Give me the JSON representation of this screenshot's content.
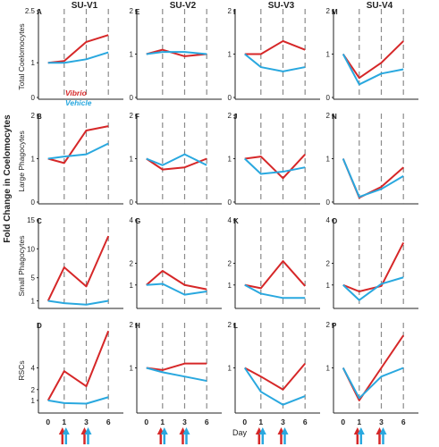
{
  "figure": {
    "y_axis_title": "Fold Change in Coelomocytes",
    "x_axis_title": "Day",
    "x_ticks": [
      "0",
      "1",
      "3",
      "6"
    ],
    "columns": [
      "SU-V1",
      "SU-V2",
      "SU-V3",
      "SU-V4"
    ],
    "rows": [
      "Total Coelomocytes",
      "Large Phagocytes",
      "Small Phagocytes",
      "RSCs"
    ],
    "legend": [
      {
        "name": "Vibrio",
        "color": "#d62728"
      },
      {
        "name": "Vehicle",
        "color": "#29a8df"
      }
    ]
  },
  "chart_data": [
    {
      "type": "line",
      "panel": "A",
      "column": "SU-V1",
      "row": "Total Coelomocytes",
      "x": [
        0,
        1,
        3,
        6
      ],
      "yticks": [
        0,
        1,
        2.5
      ],
      "ylim": [
        0,
        2.5
      ],
      "series": [
        {
          "name": "Vibrio",
          "values": [
            1.0,
            1.05,
            1.6,
            1.8
          ]
        },
        {
          "name": "Vehicle",
          "values": [
            1.0,
            1.0,
            1.1,
            1.3
          ]
        }
      ]
    },
    {
      "type": "line",
      "panel": "E",
      "column": "SU-V2",
      "row": "Total Coelomocytes",
      "x": [
        0,
        1,
        3,
        6
      ],
      "yticks": [
        0,
        1,
        2
      ],
      "ylim": [
        0,
        2
      ],
      "series": [
        {
          "name": "Vibrio",
          "values": [
            1.0,
            1.1,
            0.95,
            1.0
          ]
        },
        {
          "name": "Vehicle",
          "values": [
            1.0,
            1.05,
            1.05,
            1.0
          ]
        }
      ]
    },
    {
      "type": "line",
      "panel": "I",
      "column": "SU-V3",
      "row": "Total Coelomocytes",
      "x": [
        0,
        1,
        3,
        6
      ],
      "yticks": [
        0,
        1,
        2
      ],
      "ylim": [
        0,
        2
      ],
      "series": [
        {
          "name": "Vibrio",
          "values": [
            1.0,
            1.0,
            1.3,
            1.1
          ]
        },
        {
          "name": "Vehicle",
          "values": [
            1.0,
            0.7,
            0.6,
            0.7
          ]
        }
      ]
    },
    {
      "type": "line",
      "panel": "M",
      "column": "SU-V4",
      "row": "Total Coelomocytes",
      "x": [
        0,
        1,
        3,
        6
      ],
      "yticks": [
        0,
        1,
        2
      ],
      "ylim": [
        0,
        2
      ],
      "series": [
        {
          "name": "Vibrio",
          "values": [
            1.0,
            0.45,
            0.8,
            1.3
          ]
        },
        {
          "name": "Vehicle",
          "values": [
            1.0,
            0.3,
            0.55,
            0.65
          ]
        }
      ]
    },
    {
      "type": "line",
      "panel": "B",
      "column": "SU-V1",
      "row": "Large Phagocytes",
      "x": [
        0,
        1,
        3,
        6
      ],
      "yticks": [
        0,
        1,
        2
      ],
      "ylim": [
        0,
        2
      ],
      "series": [
        {
          "name": "Vibrio",
          "values": [
            1.0,
            0.9,
            1.65,
            1.75
          ]
        },
        {
          "name": "Vehicle",
          "values": [
            1.0,
            1.05,
            1.1,
            1.35
          ]
        }
      ]
    },
    {
      "type": "line",
      "panel": "F",
      "column": "SU-V2",
      "row": "Large Phagocytes",
      "x": [
        0,
        1,
        3,
        6
      ],
      "yticks": [
        0,
        1,
        2
      ],
      "ylim": [
        0,
        2
      ],
      "series": [
        {
          "name": "Vibrio",
          "values": [
            1.0,
            0.75,
            0.8,
            1.0
          ]
        },
        {
          "name": "Vehicle",
          "values": [
            1.0,
            0.85,
            1.1,
            0.85
          ]
        }
      ]
    },
    {
      "type": "line",
      "panel": "J",
      "column": "SU-V3",
      "row": "Large Phagocytes",
      "x": [
        0,
        1,
        3,
        6
      ],
      "yticks": [
        0,
        1,
        2
      ],
      "ylim": [
        0,
        2
      ],
      "series": [
        {
          "name": "Vibrio",
          "values": [
            1.0,
            1.05,
            0.55,
            1.1
          ]
        },
        {
          "name": "Vehicle",
          "values": [
            1.0,
            0.65,
            0.7,
            0.8
          ]
        }
      ]
    },
    {
      "type": "line",
      "panel": "N",
      "column": "SU-V4",
      "row": "Large Phagocytes",
      "x": [
        0,
        1,
        3,
        6
      ],
      "yticks": [
        0,
        1,
        2
      ],
      "ylim": [
        0,
        2
      ],
      "series": [
        {
          "name": "Vibrio",
          "values": [
            1.0,
            0.1,
            0.35,
            0.8
          ]
        },
        {
          "name": "Vehicle",
          "values": [
            1.0,
            0.12,
            0.3,
            0.6
          ]
        }
      ]
    },
    {
      "type": "line",
      "panel": "C",
      "column": "SU-V1",
      "row": "Small Phagocytes",
      "x": [
        0,
        1,
        3,
        6
      ],
      "yticks": [
        1,
        5,
        10,
        15
      ],
      "ylim": [
        0,
        15
      ],
      "series": [
        {
          "name": "Vibrio",
          "values": [
            1.0,
            6.8,
            3.5,
            12.2
          ]
        },
        {
          "name": "Vehicle",
          "values": [
            1.0,
            0.6,
            0.35,
            1.0
          ]
        }
      ]
    },
    {
      "type": "line",
      "panel": "G",
      "column": "SU-V2",
      "row": "Small Phagocytes",
      "x": [
        0,
        1,
        3,
        6
      ],
      "yticks": [
        1,
        2,
        4
      ],
      "ylim": [
        0,
        4
      ],
      "series": [
        {
          "name": "Vibrio",
          "values": [
            1.0,
            1.65,
            1.0,
            0.8
          ]
        },
        {
          "name": "Vehicle",
          "values": [
            1.0,
            1.05,
            0.55,
            0.7
          ]
        }
      ]
    },
    {
      "type": "line",
      "panel": "K",
      "column": "SU-V3",
      "row": "Small Phagocytes",
      "x": [
        0,
        1,
        3,
        6
      ],
      "yticks": [
        1,
        2,
        4
      ],
      "ylim": [
        0,
        4
      ],
      "series": [
        {
          "name": "Vibrio",
          "values": [
            1.0,
            0.85,
            2.1,
            0.95
          ]
        },
        {
          "name": "Vehicle",
          "values": [
            1.0,
            0.6,
            0.4,
            0.4
          ]
        }
      ]
    },
    {
      "type": "line",
      "panel": "O",
      "column": "SU-V4",
      "row": "Small Phagocytes",
      "x": [
        0,
        1,
        3,
        6
      ],
      "yticks": [
        1,
        2,
        4
      ],
      "ylim": [
        0,
        4
      ],
      "series": [
        {
          "name": "Vibrio",
          "values": [
            1.0,
            0.7,
            0.95,
            2.95
          ]
        },
        {
          "name": "Vehicle",
          "values": [
            1.0,
            0.3,
            1.05,
            1.35
          ]
        }
      ]
    },
    {
      "type": "line",
      "panel": "D",
      "column": "SU-V1",
      "row": "RSCs",
      "x": [
        0,
        1,
        3,
        6
      ],
      "yticks": [
        1,
        2,
        4
      ],
      "ylim": [
        0,
        8
      ],
      "series": [
        {
          "name": "Vibrio",
          "values": [
            1.0,
            3.7,
            2.3,
            7.4
          ]
        },
        {
          "name": "Vehicle",
          "values": [
            1.0,
            0.75,
            0.7,
            1.3
          ]
        }
      ]
    },
    {
      "type": "line",
      "panel": "H",
      "column": "SU-V2",
      "row": "RSCs",
      "x": [
        0,
        1,
        3,
        6
      ],
      "yticks": [
        1,
        2
      ],
      "ylim": [
        0,
        2
      ],
      "series": [
        {
          "name": "Vibrio",
          "values": [
            1.0,
            0.95,
            1.1,
            1.1
          ]
        },
        {
          "name": "Vehicle",
          "values": [
            1.0,
            0.9,
            0.8,
            0.7
          ]
        }
      ]
    },
    {
      "type": "line",
      "panel": "L",
      "column": "SU-V3",
      "row": "RSCs",
      "x": [
        0,
        1,
        3,
        6
      ],
      "yticks": [
        1,
        2
      ],
      "ylim": [
        0,
        2
      ],
      "series": [
        {
          "name": "Vibrio",
          "values": [
            1.0,
            0.8,
            0.5,
            1.1
          ]
        },
        {
          "name": "Vehicle",
          "values": [
            1.0,
            0.45,
            0.15,
            0.35
          ]
        }
      ]
    },
    {
      "type": "line",
      "panel": "P",
      "column": "SU-V4",
      "row": "RSCs",
      "x": [
        0,
        1,
        3,
        6
      ],
      "yticks": [
        1,
        2
      ],
      "ylim": [
        0,
        2
      ],
      "series": [
        {
          "name": "Vibrio",
          "values": [
            1.0,
            0.25,
            1.0,
            1.75
          ]
        },
        {
          "name": "Vehicle",
          "values": [
            1.0,
            0.3,
            0.8,
            1.0
          ]
        }
      ]
    }
  ]
}
